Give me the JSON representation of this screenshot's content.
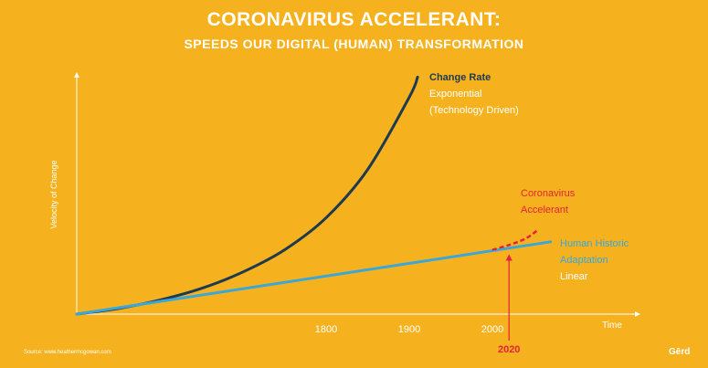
{
  "header": {
    "title": "CORONAVIRUS ACCELERANT:",
    "subtitle": "SPEEDS OUR DIGITAL (HUMAN) TRANSFORMATION"
  },
  "footer": {
    "source": "Source: www.heathermcgowan.com",
    "logo_text": "Gērd"
  },
  "colors": {
    "background": "#F6B21E",
    "exponential": "#1E3A4F",
    "linear": "#3BA6D8",
    "accelerant": "#E2233B",
    "axis": "#FFFFFF"
  },
  "chart_data": {
    "type": "line",
    "xlabel": "Time",
    "ylabel": "Velocity of Change",
    "x_ticks": [
      "1800",
      "1900",
      "2000"
    ],
    "grid": false,
    "series": [
      {
        "name": "Change Rate",
        "label_lines": [
          "Change Rate",
          "Exponential",
          "(Technology Driven)"
        ],
        "x": [
          1500,
          1550,
          1600,
          1650,
          1700,
          1750,
          1800,
          1850,
          1900,
          1910
        ],
        "y": [
          0.0,
          0.14,
          0.35,
          0.64,
          1.05,
          1.6,
          2.4,
          3.6,
          5.4,
          5.9
        ]
      },
      {
        "name": "Human Historic",
        "label_lines": [
          "Human Historic",
          "Adaptation",
          "Linear"
        ],
        "x": [
          1500,
          2070
        ],
        "y": [
          0.0,
          1.8
        ]
      },
      {
        "name": "Coronavirus",
        "label_lines": [
          "Coronavirus",
          "Accelerant"
        ],
        "x": [
          2000,
          2020,
          2040,
          2055
        ],
        "y": [
          1.6,
          1.72,
          1.88,
          2.1
        ]
      }
    ],
    "annotation": {
      "label": "2020",
      "x": 2020
    }
  }
}
